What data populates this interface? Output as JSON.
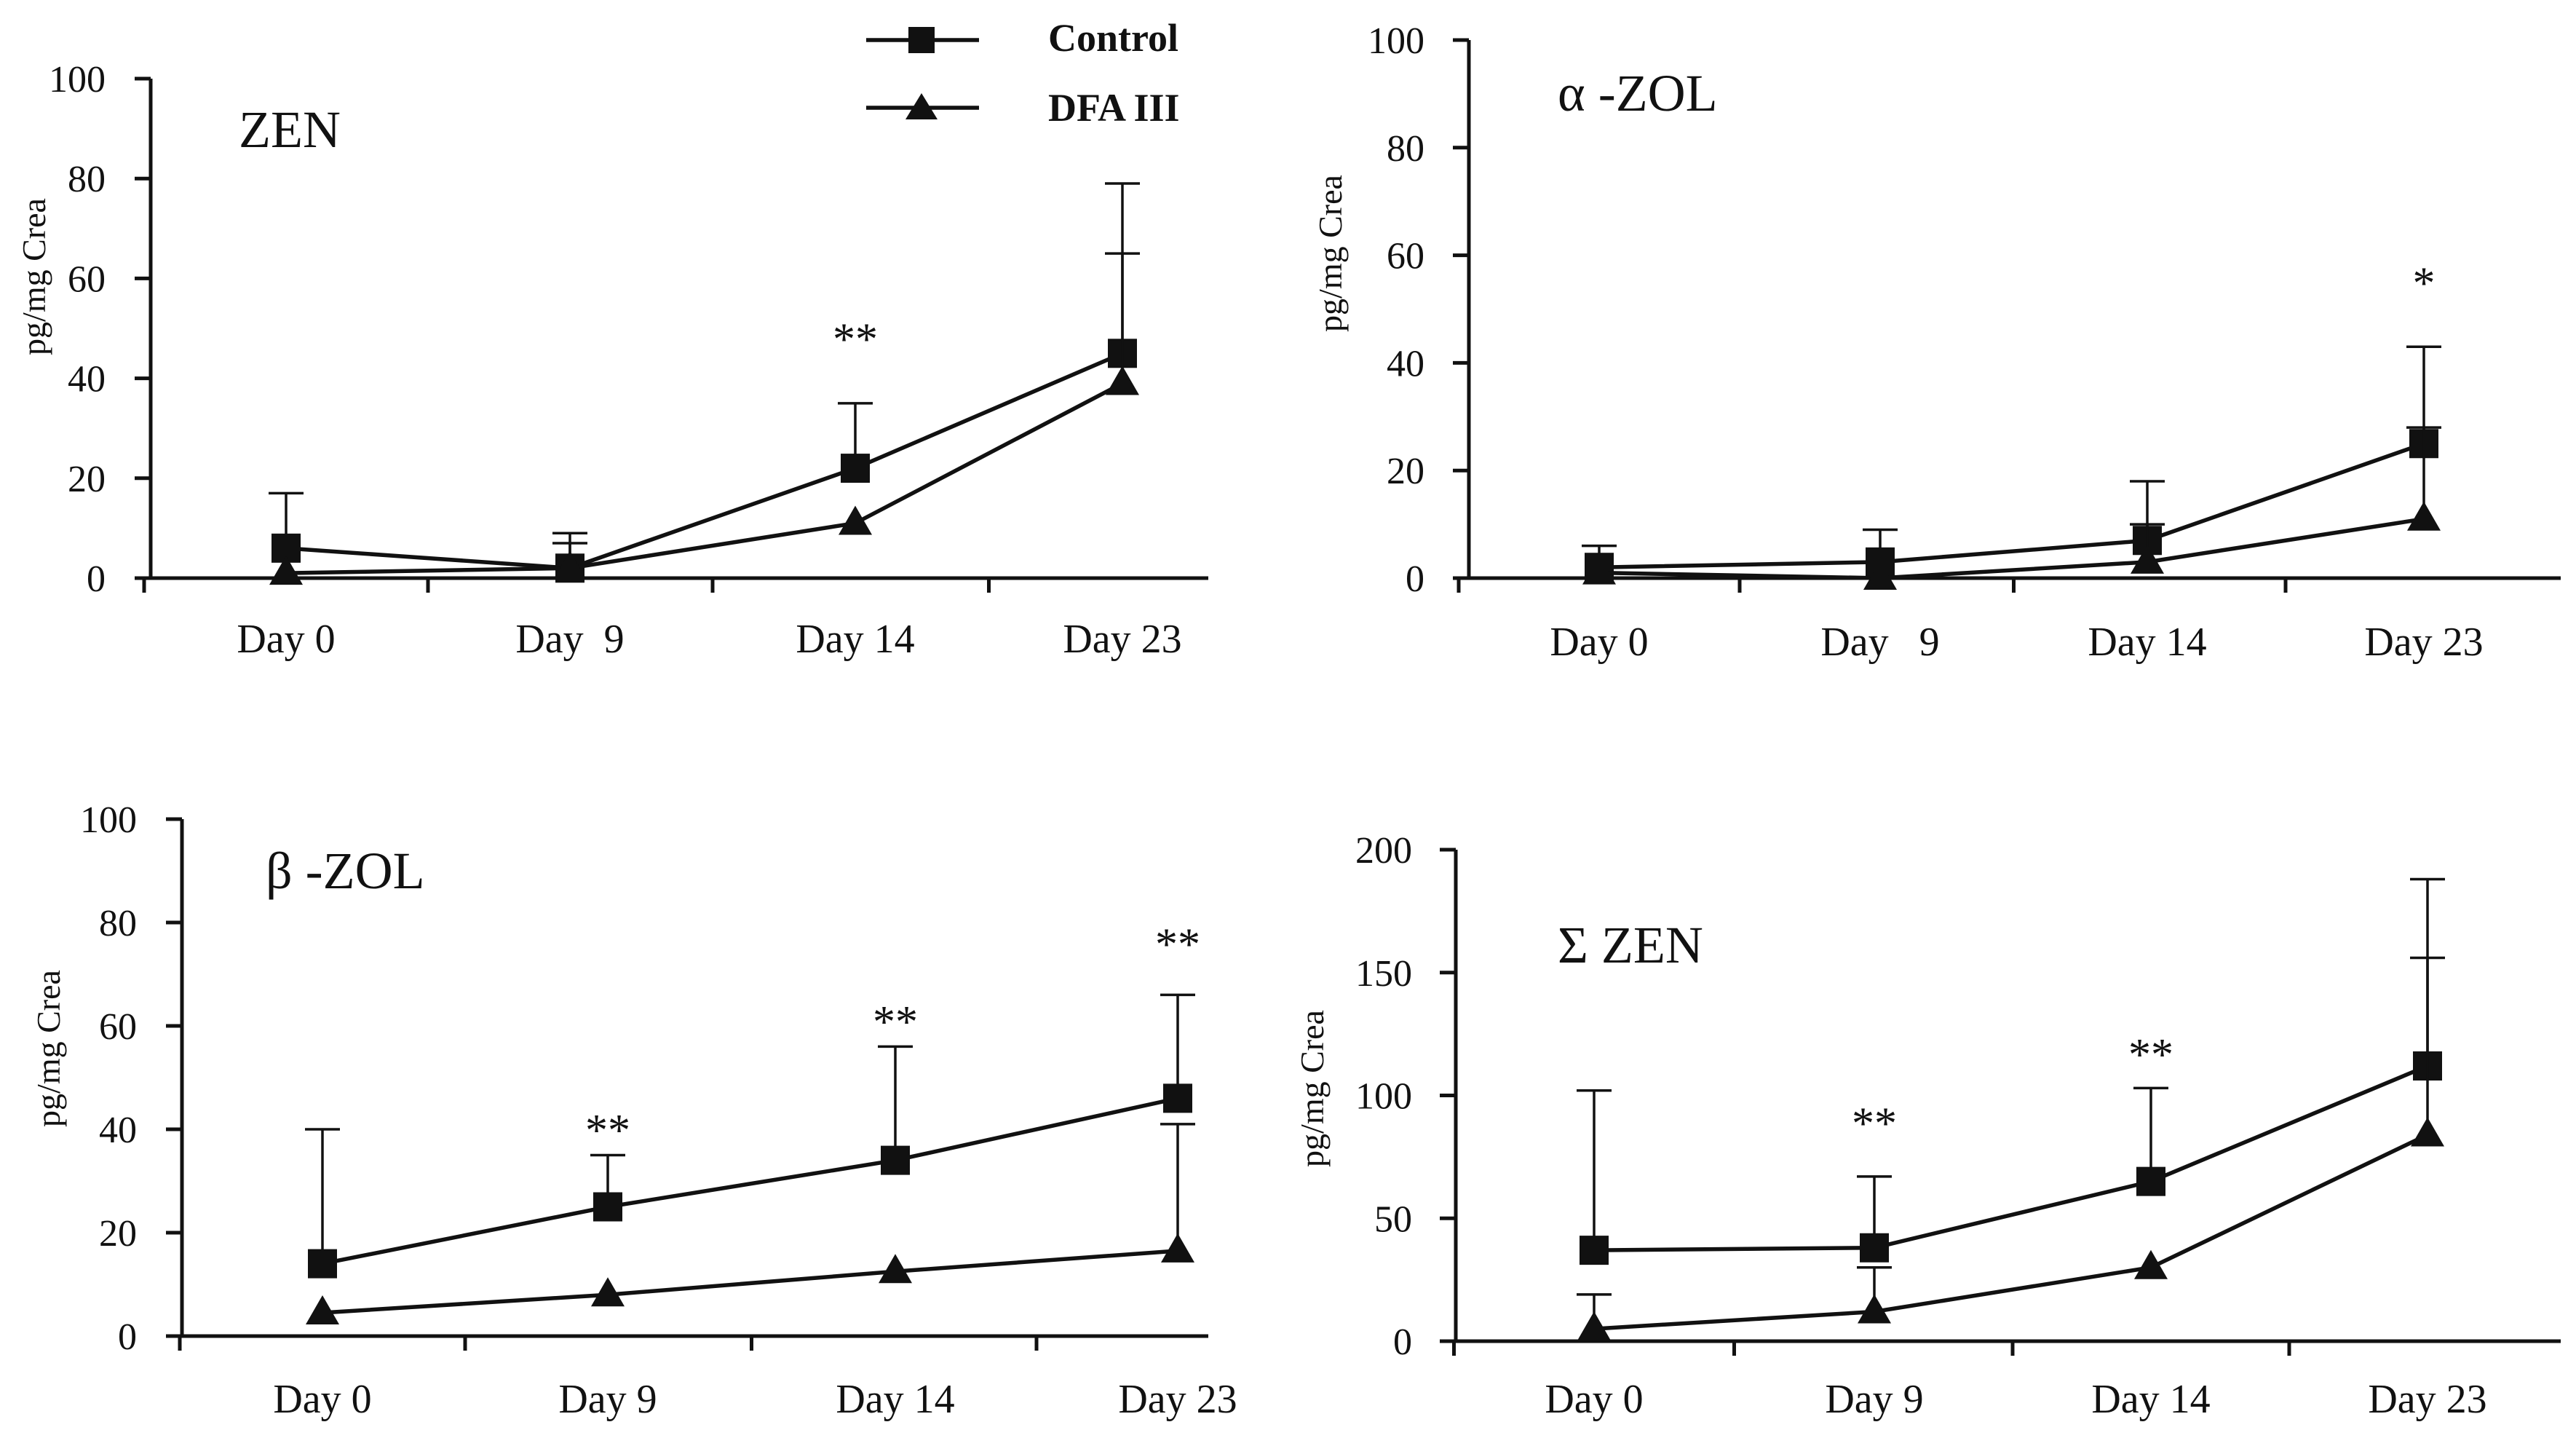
{
  "legend": {
    "entries": [
      {
        "label": "Control",
        "marker": "square-marker"
      },
      {
        "label": "DFA III",
        "marker": "triangle-marker"
      }
    ]
  },
  "chart_data": [
    {
      "type": "line",
      "title": "ZEN",
      "ylabel": "pg/mg Crea",
      "xlabel": "",
      "categories": [
        "Day 0",
        "Day  9",
        "Day 14",
        "Day 23"
      ],
      "ylim": [
        0,
        100
      ],
      "yticks": [
        0,
        20,
        40,
        60,
        80,
        100
      ],
      "legend_position": "top-right",
      "series": [
        {
          "name": "Control",
          "marker": "square",
          "values": [
            6,
            2,
            22,
            45
          ],
          "error_upper": [
            17,
            9,
            35,
            79
          ]
        },
        {
          "name": "DFA III",
          "marker": "triangle",
          "values": [
            1,
            2,
            11,
            39
          ],
          "error_upper": [
            null,
            7,
            null,
            65
          ]
        }
      ],
      "annotations": [
        {
          "category": "Day 14",
          "text": "**",
          "y": 48
        }
      ]
    },
    {
      "type": "line",
      "title": "α -ZOL",
      "ylabel": "pg/mg Crea",
      "xlabel": "",
      "categories": [
        "Day 0",
        "Day   9",
        "Day 14",
        "Day 23"
      ],
      "ylim": [
        0,
        100
      ],
      "yticks": [
        0,
        20,
        40,
        60,
        80,
        100
      ],
      "series": [
        {
          "name": "Control",
          "marker": "square",
          "values": [
            2,
            3,
            7,
            25
          ],
          "error_upper": [
            6,
            9,
            18,
            43
          ]
        },
        {
          "name": "DFA III",
          "marker": "triangle",
          "values": [
            1,
            0,
            3,
            11
          ],
          "error_upper": [
            null,
            null,
            10,
            28
          ]
        }
      ],
      "annotations": [
        {
          "category": "Day 23",
          "text": "*",
          "y": 55
        }
      ]
    },
    {
      "type": "line",
      "title": "β -ZOL",
      "ylabel": "pg/mg Crea",
      "xlabel": "",
      "categories": [
        "Day 0",
        "Day 9",
        "Day 14",
        "Day 23"
      ],
      "ylim": [
        0,
        100
      ],
      "yticks": [
        0,
        20,
        40,
        60,
        80,
        100
      ],
      "series": [
        {
          "name": "Control",
          "marker": "square",
          "values": [
            14,
            25,
            34,
            46
          ],
          "error_upper": [
            40,
            35,
            56,
            66
          ]
        },
        {
          "name": "DFA III",
          "marker": "triangle",
          "values": [
            4.5,
            8,
            12.5,
            16.5
          ],
          "error_upper": [
            null,
            null,
            null,
            41
          ]
        }
      ],
      "annotations": [
        {
          "category": "Day 9",
          "text": "**",
          "y": 40
        },
        {
          "category": "Day 14",
          "text": "**",
          "y": 61
        },
        {
          "category": "Day 23",
          "text": "**",
          "y": 76
        }
      ]
    },
    {
      "type": "line",
      "title": "Σ ZEN",
      "ylabel": "pg/mg Crea",
      "xlabel": "",
      "categories": [
        "Day 0",
        "Day 9",
        "Day 14",
        "Day 23"
      ],
      "ylim": [
        0,
        200
      ],
      "yticks": [
        0,
        50,
        100,
        150,
        200
      ],
      "series": [
        {
          "name": "Control",
          "marker": "square",
          "values": [
            37,
            38,
            65,
            112
          ],
          "error_upper": [
            102,
            67,
            103,
            188
          ]
        },
        {
          "name": "DFA III",
          "marker": "triangle",
          "values": [
            5,
            12,
            30,
            84
          ],
          "error_upper": [
            19,
            30,
            null,
            156
          ]
        }
      ],
      "annotations": [
        {
          "category": "Day 9",
          "text": "**",
          "y": 89
        },
        {
          "category": "Day 14",
          "text": "**",
          "y": 117
        }
      ]
    }
  ]
}
